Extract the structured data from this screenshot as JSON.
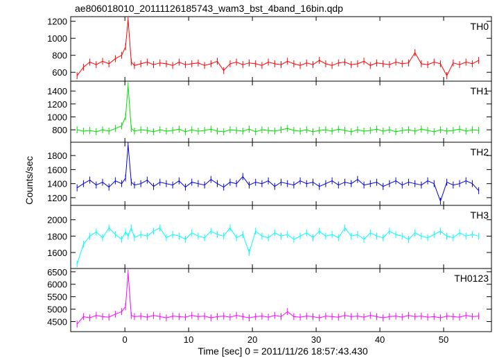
{
  "chart_data": {
    "title": "ae806018010_20111126185743_wam3_bst_4band_16bin.qdp",
    "xlabel": "Time [sec] 0 = 2011/11/26 18:57:43.430",
    "ylabel": "Counts/sec",
    "xlim": [
      -8.5,
      57.5
    ],
    "x_ticks": [
      0,
      10,
      20,
      30,
      40,
      50
    ],
    "panels": [
      {
        "type": "line",
        "name": "TH0",
        "color": "#ff0000",
        "ylim": [
          520,
          1230
        ],
        "y_ticks": [
          600,
          800,
          1000,
          1200
        ],
        "series": {
          "x": [
            -7.5,
            -6.5,
            -5.5,
            -4.5,
            -3.5,
            -2.5,
            -1.5,
            -0.5,
            0.1,
            0.5,
            1.0,
            1.5,
            2.5,
            3.5,
            4.5,
            5.5,
            6.5,
            7.5,
            8.5,
            9.5,
            10.5,
            11.5,
            12.5,
            13.5,
            14.5,
            15.5,
            16.5,
            17.5,
            18.5,
            19.5,
            20.5,
            21.5,
            22.5,
            23.5,
            24.5,
            25.5,
            26.5,
            27.5,
            28.5,
            29.5,
            30.5,
            31.5,
            32.5,
            33.5,
            34.5,
            35.5,
            36.5,
            37.5,
            38.5,
            39.5,
            40.5,
            41.5,
            42.5,
            43.5,
            44.5,
            45.5,
            46.5,
            47.5,
            48.5,
            49.5,
            50.5,
            51.5,
            52.5,
            53.5,
            54.5,
            55.5
          ],
          "y": [
            560,
            660,
            720,
            690,
            730,
            700,
            760,
            800,
            900,
            1220,
            720,
            680,
            700,
            720,
            690,
            710,
            700,
            680,
            720,
            690,
            700,
            710,
            680,
            700,
            730,
            620,
            700,
            720,
            690,
            710,
            700,
            680,
            720,
            700,
            690,
            730,
            700,
            680,
            710,
            690,
            740,
            700,
            680,
            710,
            720,
            690,
            700,
            730,
            680,
            710,
            700,
            690,
            720,
            700,
            710,
            830,
            700,
            690,
            720,
            700,
            560,
            710,
            690,
            720,
            700,
            740
          ]
        }
      },
      {
        "type": "line",
        "name": "TH1",
        "color": "#00e000",
        "ylim": [
          640,
          1520
        ],
        "y_ticks": [
          800,
          1000,
          1200,
          1400
        ],
        "series": {
          "x": [
            -7.5,
            -6.5,
            -5.5,
            -4.5,
            -3.5,
            -2.5,
            -1.5,
            -0.5,
            0.1,
            0.5,
            1.0,
            1.5,
            2.5,
            3.5,
            4.5,
            5.5,
            6.5,
            7.5,
            8.5,
            9.5,
            10.5,
            11.5,
            12.5,
            13.5,
            14.5,
            15.5,
            16.5,
            17.5,
            18.5,
            19.5,
            20.5,
            21.5,
            22.5,
            23.5,
            24.5,
            25.5,
            26.5,
            27.5,
            28.5,
            29.5,
            30.5,
            31.5,
            32.5,
            33.5,
            34.5,
            35.5,
            36.5,
            37.5,
            38.5,
            39.5,
            40.5,
            41.5,
            42.5,
            43.5,
            44.5,
            45.5,
            46.5,
            47.5,
            48.5,
            49.5,
            50.5,
            51.5,
            52.5,
            53.5,
            54.5,
            55.5
          ],
          "y": [
            800,
            780,
            790,
            770,
            800,
            780,
            820,
            860,
            1000,
            1480,
            820,
            780,
            800,
            790,
            770,
            800,
            780,
            790,
            810,
            770,
            800,
            780,
            790,
            810,
            780,
            770,
            800,
            790,
            780,
            810,
            770,
            800,
            790,
            780,
            800,
            820,
            790,
            780,
            800,
            770,
            790,
            800,
            780,
            810,
            790,
            770,
            800,
            780,
            790,
            810,
            780,
            800,
            770,
            790,
            800,
            780,
            810,
            790,
            770,
            800,
            780,
            790,
            810,
            780,
            800,
            790
          ]
        }
      },
      {
        "type": "line",
        "name": "TH2",
        "color": "#0000e0",
        "ylim": [
          1120,
          1960
        ],
        "y_ticks": [
          1200,
          1400,
          1600,
          1800
        ],
        "series": {
          "x": [
            -7.5,
            -6.5,
            -5.5,
            -4.5,
            -3.5,
            -2.5,
            -1.5,
            -0.5,
            0.1,
            0.5,
            1.0,
            1.5,
            2.5,
            3.5,
            4.5,
            5.5,
            6.5,
            7.5,
            8.5,
            9.5,
            10.5,
            11.5,
            12.5,
            13.5,
            14.5,
            15.5,
            16.5,
            17.5,
            18.5,
            19.5,
            20.5,
            21.5,
            22.5,
            23.5,
            24.5,
            25.5,
            26.5,
            27.5,
            28.5,
            29.5,
            30.5,
            31.5,
            32.5,
            33.5,
            34.5,
            35.5,
            36.5,
            37.5,
            38.5,
            39.5,
            40.5,
            41.5,
            42.5,
            43.5,
            44.5,
            45.5,
            46.5,
            47.5,
            48.5,
            49.5,
            50.5,
            51.5,
            52.5,
            53.5,
            54.5,
            55.5
          ],
          "y": [
            1340,
            1400,
            1450,
            1380,
            1420,
            1350,
            1440,
            1400,
            1480,
            1950,
            1420,
            1380,
            1400,
            1450,
            1360,
            1420,
            1400,
            1380,
            1440,
            1350,
            1420,
            1400,
            1380,
            1460,
            1400,
            1350,
            1420,
            1400,
            1500,
            1380,
            1420,
            1400,
            1440,
            1360,
            1420,
            1400,
            1380,
            1440,
            1400,
            1420,
            1360,
            1400,
            1440,
            1380,
            1420,
            1400,
            1460,
            1380,
            1400,
            1420,
            1360,
            1400,
            1440,
            1380,
            1420,
            1400,
            1380,
            1440,
            1400,
            1150,
            1420,
            1380,
            1400,
            1440,
            1400,
            1300
          ]
        }
      },
      {
        "type": "line",
        "name": "TH3",
        "color": "#00ffff",
        "ylim": [
          1430,
          2150
        ],
        "y_ticks": [
          1600,
          1800,
          2000
        ],
        "series": {
          "x": [
            -7.5,
            -6.5,
            -5.5,
            -4.5,
            -3.5,
            -2.5,
            -1.5,
            -0.5,
            0.1,
            0.5,
            1.0,
            1.5,
            2.5,
            3.5,
            4.5,
            5.5,
            6.5,
            7.5,
            8.5,
            9.5,
            10.5,
            11.5,
            12.5,
            13.5,
            14.5,
            15.5,
            16.5,
            17.5,
            18.5,
            19.5,
            20.5,
            21.5,
            22.5,
            23.5,
            24.5,
            25.5,
            26.5,
            27.5,
            28.5,
            29.5,
            30.5,
            31.5,
            32.5,
            33.5,
            34.5,
            35.5,
            36.5,
            37.5,
            38.5,
            39.5,
            40.5,
            41.5,
            42.5,
            43.5,
            44.5,
            45.5,
            46.5,
            47.5,
            48.5,
            49.5,
            50.5,
            51.5,
            52.5,
            53.5,
            54.5,
            55.5
          ],
          "y": [
            1460,
            1700,
            1800,
            1850,
            1780,
            1900,
            1820,
            1760,
            1850,
            1800,
            1900,
            1780,
            1820,
            1800,
            1860,
            1900,
            1780,
            1820,
            1800,
            1760,
            1840,
            1800,
            1780,
            1860,
            1820,
            1800,
            1900,
            1780,
            1820,
            1600,
            1860,
            1800,
            1780,
            1840,
            1800,
            1820,
            1760,
            1800,
            1840,
            1780,
            1860,
            1800,
            1820,
            1780,
            1900,
            1800,
            1820,
            1760,
            1840,
            1800,
            1780,
            1860,
            1820,
            1800,
            1760,
            1840,
            1800,
            1780,
            1820,
            1860,
            1800,
            1780,
            1840,
            1800,
            1820,
            1800
          ]
        }
      },
      {
        "type": "line",
        "name": "TH0123",
        "color": "#ff00ff",
        "ylim": [
          4180,
          6550
        ],
        "y_ticks": [
          4500,
          5000,
          5500,
          6000,
          6500
        ],
        "series": {
          "x": [
            -7.5,
            -6.5,
            -5.5,
            -4.5,
            -3.5,
            -2.5,
            -1.5,
            -0.5,
            0.1,
            0.5,
            1.0,
            1.5,
            2.5,
            3.5,
            4.5,
            5.5,
            6.5,
            7.5,
            8.5,
            9.5,
            10.5,
            11.5,
            12.5,
            13.5,
            14.5,
            15.5,
            16.5,
            17.5,
            18.5,
            19.5,
            20.5,
            21.5,
            22.5,
            23.5,
            24.5,
            25.5,
            26.5,
            27.5,
            28.5,
            29.5,
            30.5,
            31.5,
            32.5,
            33.5,
            34.5,
            35.5,
            36.5,
            37.5,
            38.5,
            39.5,
            40.5,
            41.5,
            42.5,
            43.5,
            44.5,
            45.5,
            46.5,
            47.5,
            48.5,
            49.5,
            50.5,
            51.5,
            52.5,
            53.5,
            54.5,
            55.5
          ],
          "y": [
            4400,
            4700,
            4650,
            4750,
            4700,
            4680,
            4800,
            4900,
            5100,
            6450,
            4750,
            4700,
            4720,
            4680,
            4750,
            4700,
            4650,
            4720,
            4700,
            4680,
            4750,
            4700,
            4720,
            4650,
            4700,
            4720,
            4680,
            4750,
            4700,
            4650,
            4700,
            4720,
            4680,
            4750,
            4700,
            4900,
            4700,
            4680,
            4720,
            4700,
            4650,
            4720,
            4700,
            4680,
            4750,
            4700,
            4720,
            4680,
            4750,
            4700,
            4650,
            4700,
            4720,
            4680,
            4750,
            4700,
            4720,
            4680,
            4700,
            4650,
            4720,
            4700,
            4680,
            4750,
            4700,
            4720
          ]
        }
      }
    ]
  }
}
